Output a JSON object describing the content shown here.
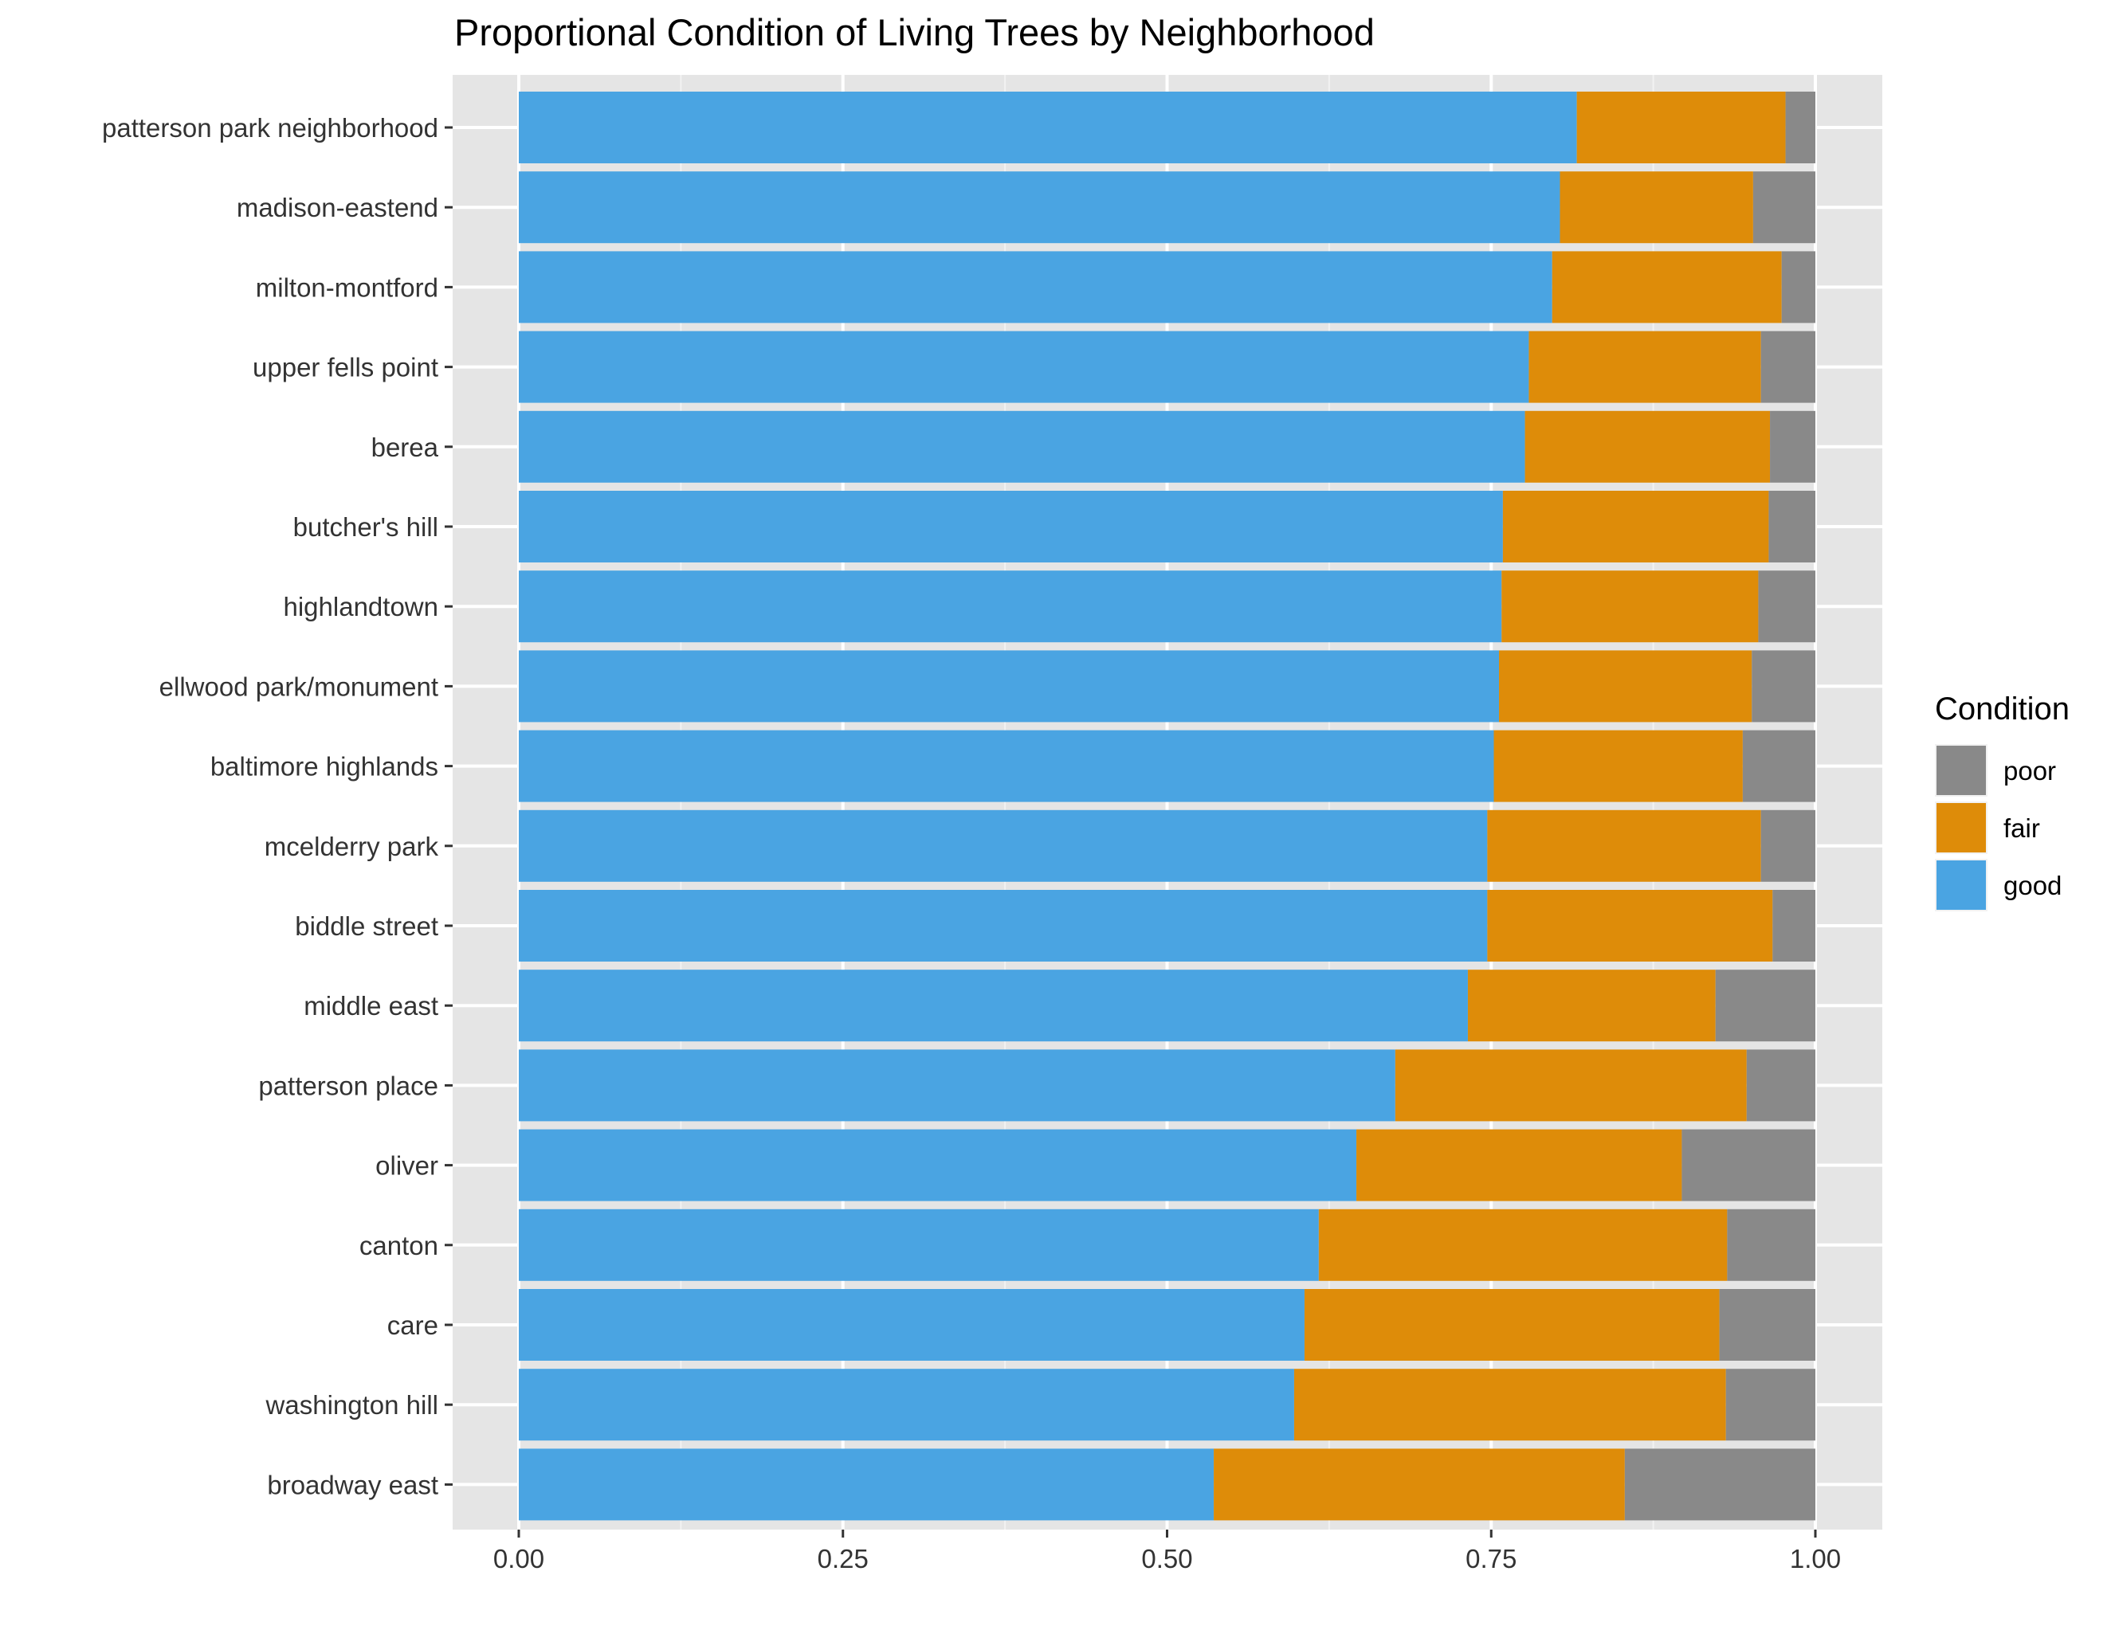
{
  "chart_data": {
    "type": "bar",
    "orientation": "horizontal",
    "stacked": "proportional",
    "title": "Proportional Condition of Living Trees by Neighborhood",
    "xlabel": "",
    "ylabel": "",
    "xlim": [
      0,
      1
    ],
    "x_ticks": [
      "0.00",
      "0.25",
      "0.50",
      "0.75",
      "1.00"
    ],
    "x_tick_values": [
      0,
      0.25,
      0.5,
      0.75,
      1.0
    ],
    "grid": true,
    "legend": {
      "title": "Condition",
      "position": "right"
    },
    "categories": [
      "patterson park neighborhood",
      "madison-eastend",
      "milton-montford",
      "upper fells point",
      "berea",
      "butcher's hill",
      "highlandtown",
      "ellwood park/monument",
      "baltimore highlands",
      "mcelderry park",
      "biddle street",
      "middle east",
      "patterson place",
      "oliver",
      "canton",
      "care",
      "washington hill",
      "broadway east"
    ],
    "series": [
      {
        "name": "good",
        "color": "#4AA4E2",
        "values": [
          0.816,
          0.803,
          0.797,
          0.779,
          0.776,
          0.759,
          0.758,
          0.756,
          0.752,
          0.747,
          0.747,
          0.732,
          0.676,
          0.646,
          0.617,
          0.606,
          0.598,
          0.536
        ]
      },
      {
        "name": "fair",
        "color": "#DE8C09",
        "values": [
          0.161,
          0.149,
          0.177,
          0.179,
          0.189,
          0.205,
          0.198,
          0.195,
          0.192,
          0.211,
          0.22,
          0.191,
          0.271,
          0.251,
          0.315,
          0.32,
          0.333,
          0.317
        ]
      },
      {
        "name": "poor",
        "color": "#898989",
        "values": [
          0.023,
          0.048,
          0.026,
          0.042,
          0.035,
          0.036,
          0.044,
          0.049,
          0.056,
          0.042,
          0.033,
          0.077,
          0.053,
          0.103,
          0.068,
          0.074,
          0.069,
          0.147
        ]
      }
    ],
    "legend_order": [
      "poor",
      "fair",
      "good"
    ]
  }
}
